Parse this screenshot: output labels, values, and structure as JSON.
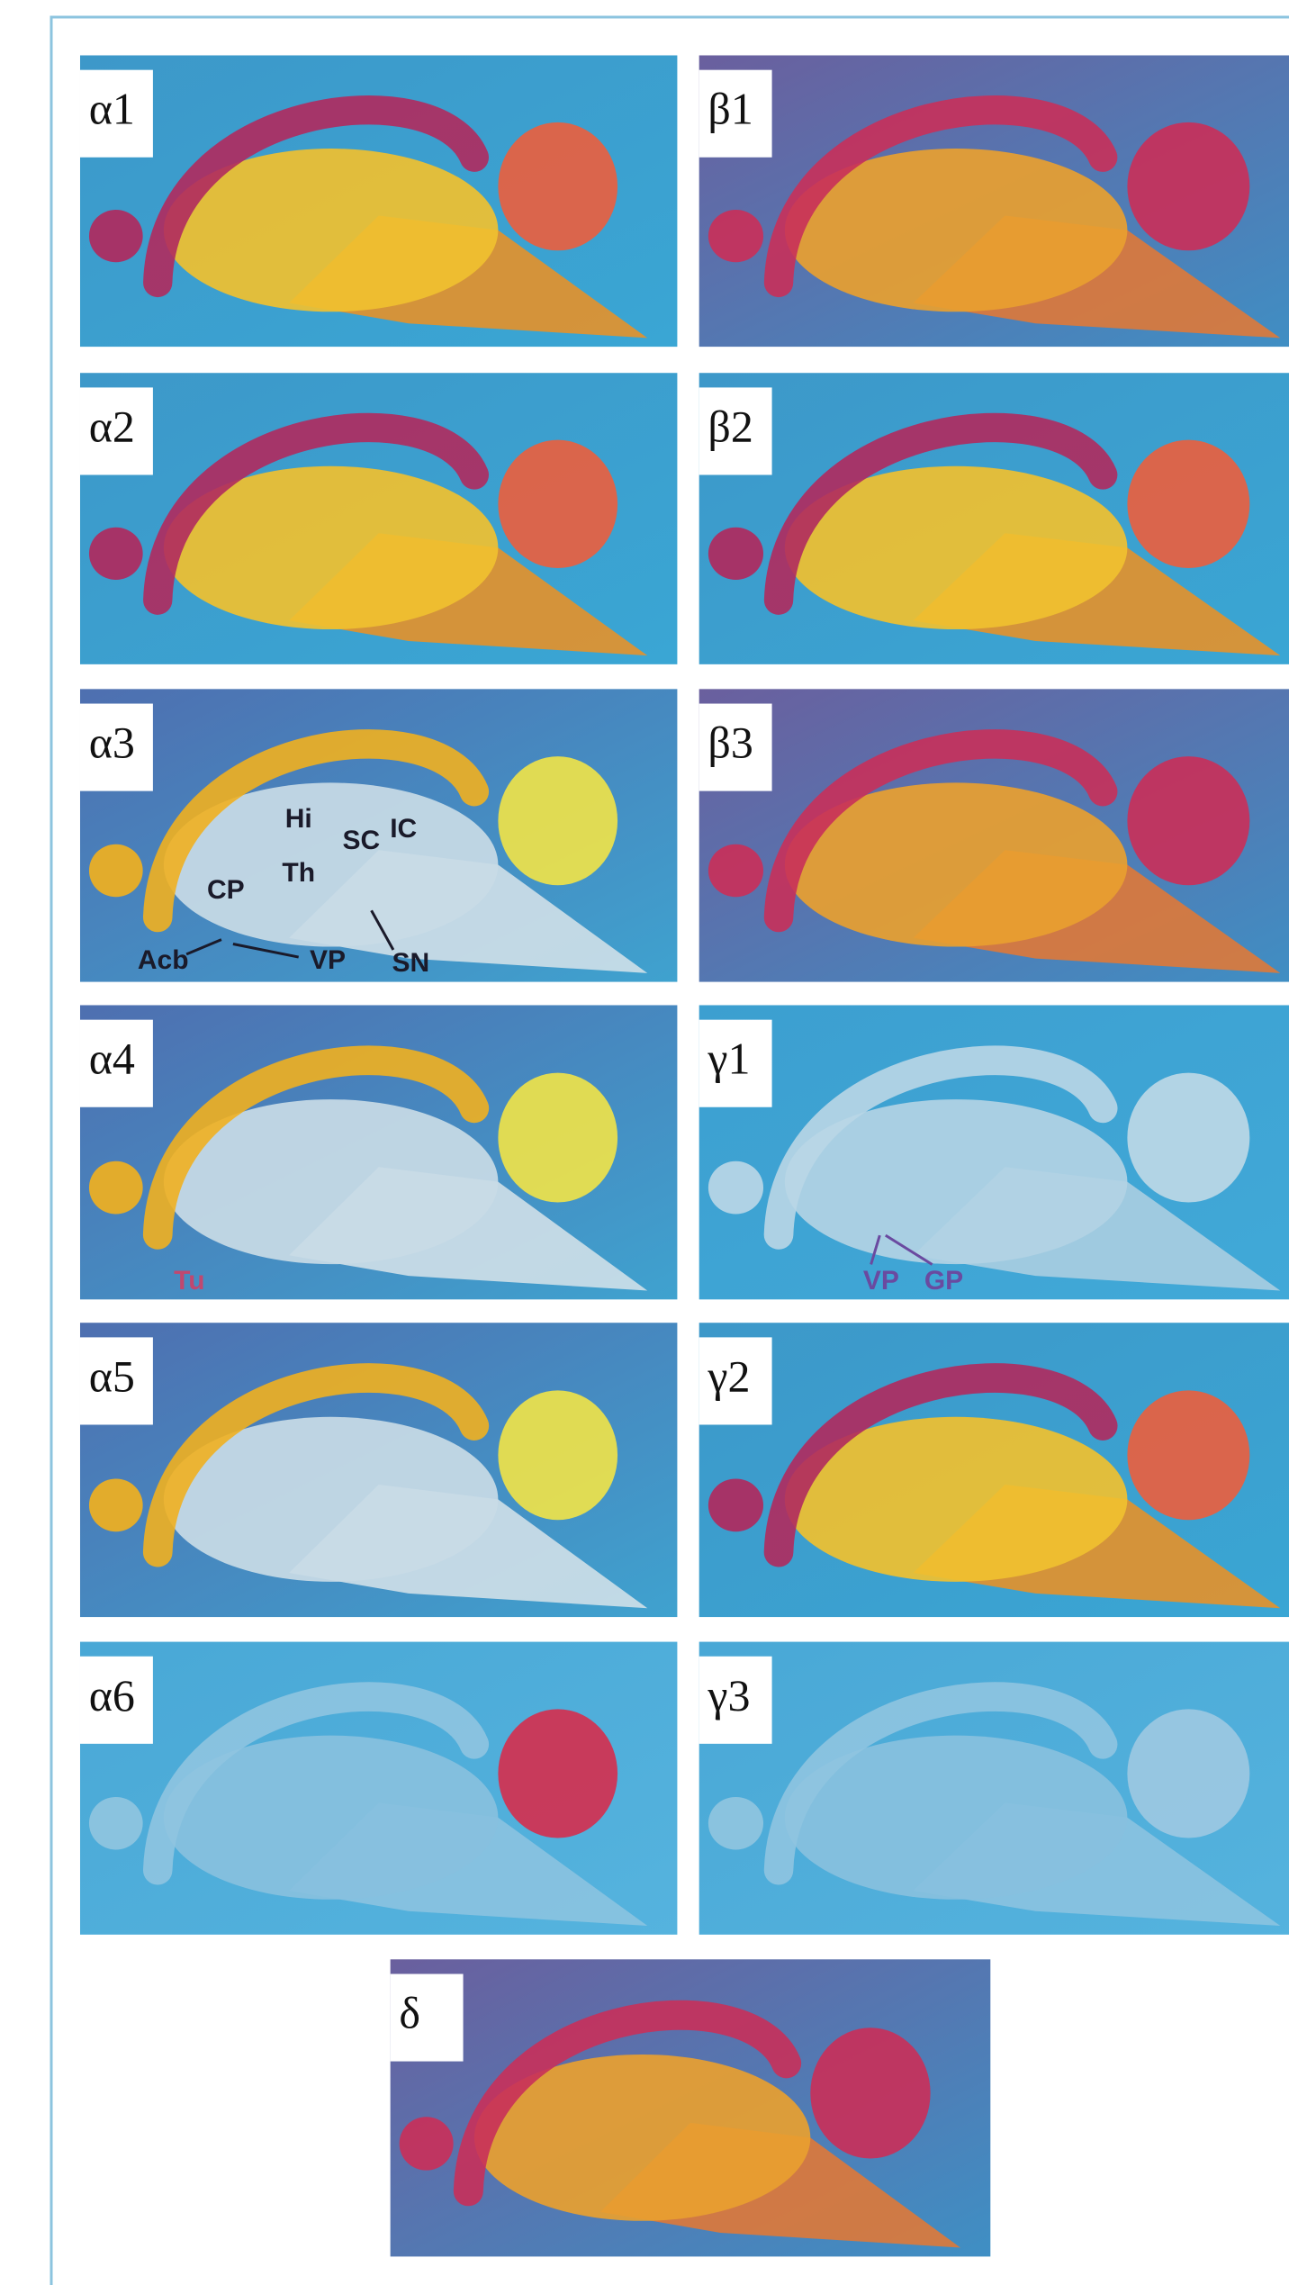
{
  "panels": [
    {
      "label": "α1"
    },
    {
      "label": "β1"
    },
    {
      "label": "α2"
    },
    {
      "label": "β2"
    },
    {
      "label": "α3",
      "annotations": [
        "Hi",
        "SC",
        "IC",
        "Th",
        "CP",
        "Acb",
        "VP",
        "SN"
      ]
    },
    {
      "label": "β3"
    },
    {
      "label": "α4",
      "annotations": [
        "Tu"
      ]
    },
    {
      "label": "γ1",
      "annotations": [
        "VP",
        "GP"
      ]
    },
    {
      "label": "α5"
    },
    {
      "label": "γ2"
    },
    {
      "label": "α6"
    },
    {
      "label": "γ3"
    },
    {
      "label": "δ"
    }
  ]
}
